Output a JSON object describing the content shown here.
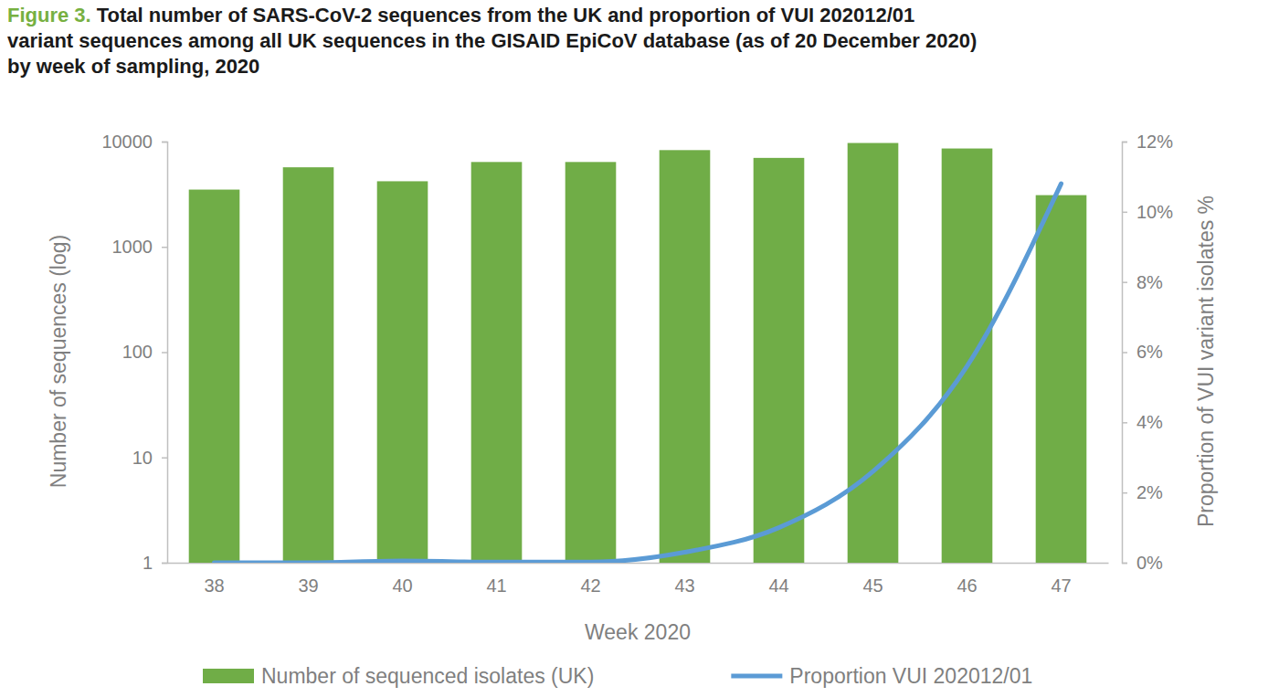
{
  "chart_data": {
    "type": "bar",
    "figure_label": "Figure 3.",
    "title": [
      "Total number of SARS-CoV-2 sequences from the UK and proportion of VUI 202012/01",
      "variant sequences among all UK sequences in the GISAID EpiCoV database (as of 20 December 2020)",
      "by week of sampling, 2020"
    ],
    "x_label": "Week 2020",
    "y_label": "Number of sequences (log)",
    "y2_label": "Proportion of VUI variant isolates %",
    "categories": [
      "38",
      "39",
      "40",
      "41",
      "42",
      "43",
      "44",
      "45",
      "46",
      "47"
    ],
    "series": [
      {
        "name": "Number of sequenced isolates (UK)",
        "type": "bar",
        "color": "#70ad47",
        "values": [
          3500,
          5700,
          4200,
          6400,
          6400,
          8300,
          7000,
          9700,
          8600,
          3100
        ]
      },
      {
        "name": "Proportion VUI 202012/01",
        "type": "line",
        "color": "#5b9bd5",
        "axis": "y2",
        "values": [
          0,
          0,
          0.05,
          0.02,
          0.02,
          0.3,
          1.0,
          2.6,
          5.6,
          10.8
        ]
      }
    ],
    "ylim": [
      1,
      10000
    ],
    "yticks": [
      1,
      10,
      100,
      1000,
      10000
    ],
    "log": "y",
    "y2lim": [
      0,
      12
    ],
    "y2ticks": [
      {
        "value": 0,
        "label": "0%"
      },
      {
        "value": 2,
        "label": "2%"
      },
      {
        "value": 4,
        "label": "4%"
      },
      {
        "value": 6,
        "label": "6%"
      },
      {
        "value": 8,
        "label": "8%"
      },
      {
        "value": 10,
        "label": "10%"
      },
      {
        "value": 12,
        "label": "12%"
      }
    ],
    "grid": false,
    "legend": "bottom"
  }
}
